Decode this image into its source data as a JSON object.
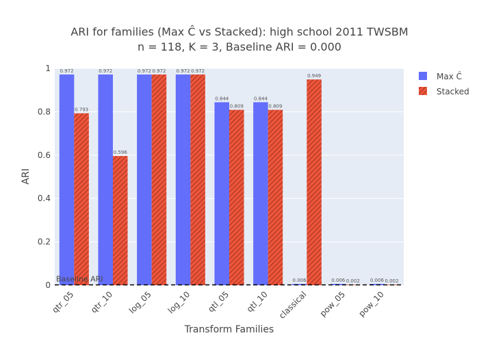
{
  "chart_data": {
    "type": "bar",
    "title_lines": [
      "ARI for families (Max Ĉ vs Stacked): high school 2011 TWSBM",
      "n = 118, K = 3, Baseline ARI = 0.000"
    ],
    "xlabel": "Transform Families",
    "ylabel": "ARI",
    "ylim": [
      0,
      1
    ],
    "yticks": [
      0,
      0.2,
      0.4,
      0.6,
      0.8,
      1
    ],
    "ytick_labels": [
      "0",
      "0.2",
      "0.4",
      "0.6",
      "0.8",
      "1"
    ],
    "categories": [
      "qtr_05",
      "qtr_10",
      "log_05",
      "log_10",
      "qtl_05",
      "qtl_10",
      "classical",
      "pow_05",
      "pow_10"
    ],
    "series": [
      {
        "name": "Max Ĉ",
        "color": "#636efa",
        "pattern": "solid",
        "values": [
          0.972,
          0.972,
          0.972,
          0.972,
          0.844,
          0.844,
          0.006,
          0.006,
          0.006
        ],
        "labels": [
          "0.972",
          "0.972",
          "0.972",
          "0.972",
          "0.844",
          "0.844",
          "0.006",
          "0.006",
          "0.006"
        ]
      },
      {
        "name": "Stacked",
        "color": "#ef553b",
        "pattern": "diagonal-hatch",
        "values": [
          0.793,
          0.596,
          0.972,
          0.972,
          0.809,
          0.809,
          0.949,
          0.002,
          0.002
        ],
        "labels": [
          "0.793",
          "0.596",
          "0.972",
          "0.972",
          "0.809",
          "0.809",
          "0.949",
          "0.002",
          "0.002"
        ]
      }
    ],
    "baseline": {
      "value": 0.0,
      "label": "Baseline ARI",
      "style": "dashed",
      "color": "#000000"
    },
    "legend_position": "top-right",
    "grid": true,
    "plot_background": "#e5ecf6"
  }
}
